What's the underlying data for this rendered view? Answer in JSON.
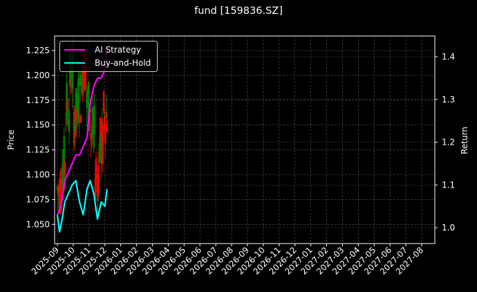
{
  "title": "fund [159836.SZ]",
  "legend": {
    "items": [
      {
        "label": "AI Strategy",
        "color": "#ff00ff"
      },
      {
        "label": "Buy-and-Hold",
        "color": "#00ffff"
      }
    ]
  },
  "axes": {
    "left_label": "Price",
    "right_label": "Return",
    "left_ticks": [
      "1.050",
      "1.075",
      "1.100",
      "1.125",
      "1.150",
      "1.175",
      "1.200",
      "1.225"
    ],
    "right_ticks": [
      "1.0",
      "1.1",
      "1.2",
      "1.3",
      "1.4"
    ],
    "x_ticks": [
      "2025-09",
      "2025-10",
      "2025-11",
      "2025-12",
      "2026-01",
      "2026-02",
      "2026-03",
      "2026-04",
      "2026-05",
      "2026-06",
      "2026-07",
      "2026-08",
      "2026-09",
      "2026-10",
      "2026-11",
      "2026-12",
      "2027-01",
      "2027-02",
      "2027-03",
      "2027-04",
      "2027-05",
      "2027-06",
      "2027-07",
      "2027-08"
    ]
  },
  "chart_data": {
    "type": "line",
    "title": "fund [159836.SZ]",
    "xlabel": "",
    "ylabel": "Price",
    "ylabel_right": "Return",
    "ylim": [
      1.032,
      1.24
    ],
    "ylim_right": [
      0.966,
      1.446
    ],
    "grid": true,
    "legend_position": "upper left",
    "x_range": [
      "2025-09",
      "2027-09"
    ],
    "candlestick": {
      "description": "Daily price candles (green up, red down), Sept–early Dec 2025",
      "up_color": "#008000",
      "down_color": "#ff0000",
      "price_range": [
        1.05,
        1.23
      ]
    },
    "series": [
      {
        "name": "AI Strategy",
        "axis": "right",
        "color": "#ff00ff",
        "x": [
          "2025-09-01",
          "2025-09-08",
          "2025-09-15",
          "2025-09-22",
          "2025-09-29",
          "2025-10-06",
          "2025-10-13",
          "2025-10-20",
          "2025-10-27",
          "2025-11-03",
          "2025-11-10",
          "2025-11-17",
          "2025-11-24",
          "2025-12-01",
          "2025-12-05"
        ],
        "values": [
          1.03,
          1.05,
          1.11,
          1.13,
          1.15,
          1.17,
          1.17,
          1.19,
          1.21,
          1.29,
          1.33,
          1.35,
          1.35,
          1.37,
          1.42
        ]
      },
      {
        "name": "Buy-and-Hold",
        "axis": "right",
        "color": "#00ffff",
        "x": [
          "2025-09-01",
          "2025-09-05",
          "2025-09-10",
          "2025-09-15",
          "2025-09-22",
          "2025-09-29",
          "2025-10-06",
          "2025-10-13",
          "2025-10-20",
          "2025-10-27",
          "2025-11-03",
          "2025-11-10",
          "2025-11-17",
          "2025-11-24",
          "2025-12-01",
          "2025-12-05"
        ],
        "values": [
          1.03,
          0.99,
          1.02,
          1.06,
          1.08,
          1.1,
          1.11,
          1.06,
          1.03,
          1.09,
          1.11,
          1.08,
          1.02,
          1.06,
          1.05,
          1.09
        ]
      }
    ]
  }
}
